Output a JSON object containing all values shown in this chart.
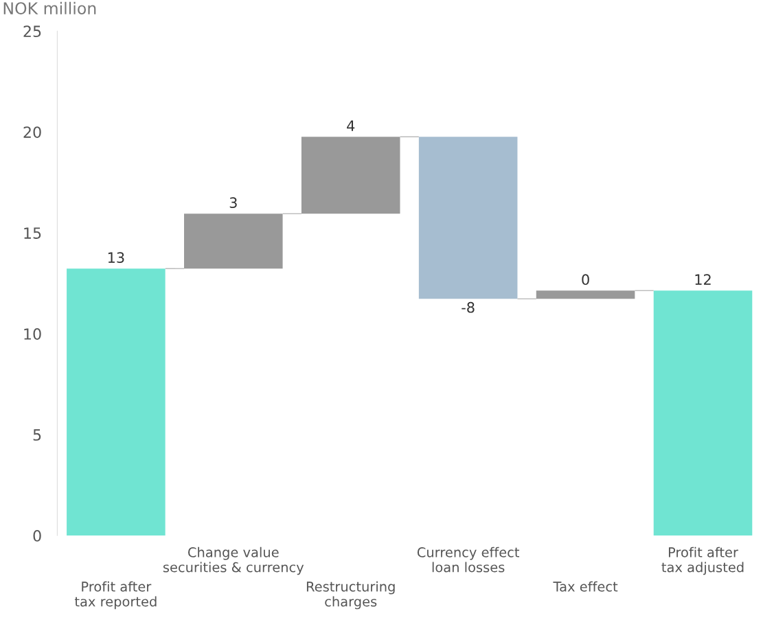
{
  "chart_data": {
    "type": "bar",
    "ylabel": "NOK million",
    "categories": [
      "Profit after\ntax reported",
      "Change value\nsecurities & currency",
      "Restructuring\ncharges",
      "Currency effect\nloan losses",
      "Tax effect",
      "Profit after\ntax adjusted"
    ],
    "values": [
      13.23,
      2.72,
      3.81,
      -8.03,
      0.41,
      12.14
    ],
    "base": [
      0,
      13.23,
      15.95,
      19.76,
      11.73,
      0
    ],
    "colors": [
      "#70e4d2",
      "#999999",
      "#999999",
      "#a6bdd0",
      "#999999",
      "#70e4d2"
    ],
    "value_labels": [
      "13",
      "3",
      "4",
      "-8",
      "0",
      "12"
    ],
    "ylim": [
      0,
      25
    ],
    "yticks": [
      0,
      5,
      10,
      15,
      20,
      25
    ],
    "grid": false,
    "legend": false
  }
}
